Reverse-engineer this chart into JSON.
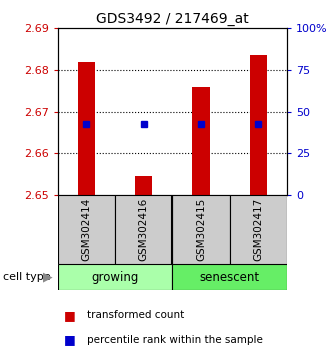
{
  "title": "GDS3492 / 217469_at",
  "samples": [
    "GSM302414",
    "GSM302416",
    "GSM302415",
    "GSM302417"
  ],
  "groups": [
    {
      "label": "growing",
      "color": "#aaffaa"
    },
    {
      "label": "senescent",
      "color": "#66ee66"
    }
  ],
  "bar_base": 2.65,
  "bar_tops": [
    2.682,
    2.6545,
    2.676,
    2.6835
  ],
  "percentile_values": [
    2.667,
    2.667,
    2.667,
    2.667
  ],
  "ylim_left": [
    2.65,
    2.69
  ],
  "ylim_right": [
    0,
    100
  ],
  "yticks_left": [
    2.65,
    2.66,
    2.67,
    2.68,
    2.69
  ],
  "yticks_right": [
    0,
    25,
    50,
    75,
    100
  ],
  "ytick_labels_right": [
    "0",
    "25",
    "50",
    "75",
    "100%"
  ],
  "bar_color": "#cc0000",
  "dot_color": "#0000cc",
  "left_axis_color": "#cc0000",
  "right_axis_color": "#0000cc",
  "sample_box_color": "#cccccc",
  "legend_bar_label": "transformed count",
  "legend_dot_label": "percentile rank within the sample",
  "cell_type_label": "cell type"
}
